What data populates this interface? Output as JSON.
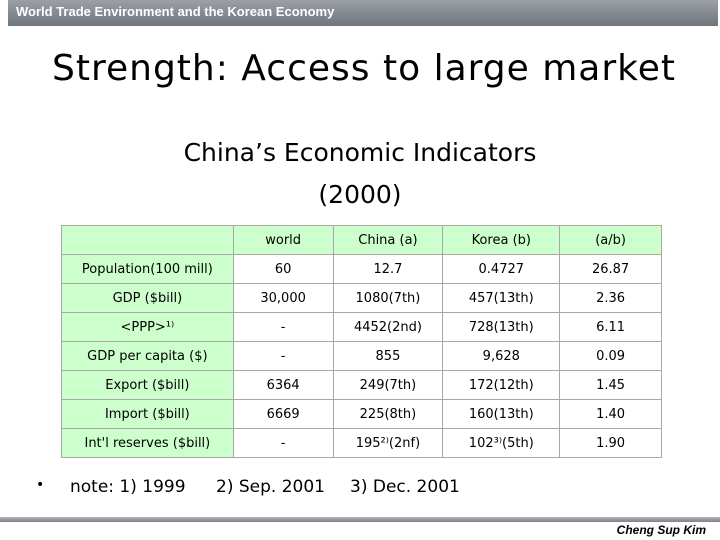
{
  "header": {
    "title": "World Trade Environment and the Korean Economy"
  },
  "slide": {
    "title": "Strength: Access to large market",
    "subtitle": "China’s Economic Indicators",
    "subtitle_year": "(2000)"
  },
  "table": {
    "headers": [
      "",
      "world",
      "China (a)",
      "Korea (b)",
      "(a/b)"
    ],
    "rows": [
      [
        "Population(100 mill)",
        "60",
        "12.7",
        "0.4727",
        "26.87"
      ],
      [
        "GDP ($bill)",
        "30,000",
        "1080(7th)",
        "457(13th)",
        "2.36"
      ],
      [
        "<PPP>¹⁾",
        "-",
        "4452(2nd)",
        "728(13th)",
        "6.11"
      ],
      [
        "GDP per capita ($)",
        "-",
        "855",
        "9,628",
        "0.09"
      ],
      [
        "Export ($bill)",
        "6364",
        "249(7th)",
        "172(12th)",
        "1.45"
      ],
      [
        "Import ($bill)",
        "6669",
        "225(8th)",
        "160(13th)",
        "1.40"
      ],
      [
        "Int'l reserves ($bill)",
        "-",
        "195²⁾(2nf)",
        "102³⁾(5th)",
        "1.90"
      ]
    ]
  },
  "note": {
    "bullet": "•",
    "label": "note: 1) 1999",
    "item2": "2) Sep. 2001",
    "item3": "3) Dec. 2001"
  },
  "footer": {
    "author": "Cheng Sup Kim"
  },
  "colors": {
    "header_bar": "#80868c",
    "table_header_bg": "#ccffcc",
    "table_border": "#a8a8a8"
  }
}
